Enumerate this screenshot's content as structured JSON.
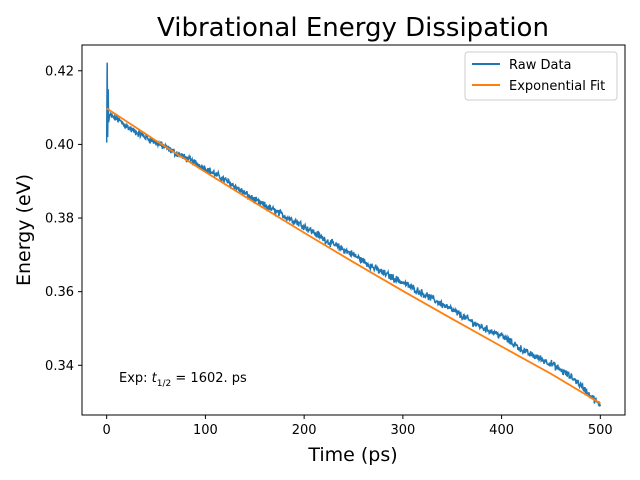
{
  "chart_data": {
    "type": "line",
    "title": "Vibrational Energy Dissipation",
    "xlabel": "Time (ps)",
    "ylabel": "Energy (eV)",
    "xlim": [
      -25,
      525
    ],
    "ylim": [
      0.3265,
      0.427
    ],
    "xticks": [
      0,
      100,
      200,
      300,
      400,
      500
    ],
    "xtick_labels": [
      "0",
      "100",
      "200",
      "300",
      "400",
      "500"
    ],
    "yticks": [
      0.34,
      0.36,
      0.38,
      0.4,
      0.42
    ],
    "ytick_labels": [
      "0.34",
      "0.36",
      "0.38",
      "0.40",
      "0.42"
    ],
    "grid": false,
    "legend_position": "top-right",
    "series": [
      {
        "name": "Raw Data",
        "color": "#1f77b4",
        "x": [
          0,
          0.5,
          1,
          1.5,
          2,
          3,
          5,
          10,
          25,
          50,
          75,
          100,
          125,
          150,
          175,
          200,
          225,
          250,
          275,
          300,
          325,
          350,
          375,
          400,
          425,
          450,
          475,
          500
        ],
        "y": [
          0.4005,
          0.4222,
          0.402,
          0.415,
          0.406,
          0.408,
          0.4075,
          0.407,
          0.404,
          0.4005,
          0.397,
          0.3935,
          0.3895,
          0.3848,
          0.3813,
          0.3778,
          0.3735,
          0.37,
          0.3658,
          0.3625,
          0.3588,
          0.355,
          0.351,
          0.348,
          0.3435,
          0.3405,
          0.336,
          0.329
        ]
      },
      {
        "name": "Exponential Fit",
        "color": "#ff7f0e",
        "x": [
          0,
          50,
          100,
          150,
          200,
          250,
          300,
          350,
          400,
          450,
          500
        ],
        "y": [
          0.4098,
          0.401,
          0.3925,
          0.3842,
          0.376,
          0.368,
          0.3602,
          0.3526,
          0.3451,
          0.3377,
          0.3297
        ]
      }
    ],
    "annotation": {
      "prefix": "Exp: ",
      "symbol": "t",
      "subscript": "1/2",
      "suffix": " = 1602. ps"
    }
  }
}
